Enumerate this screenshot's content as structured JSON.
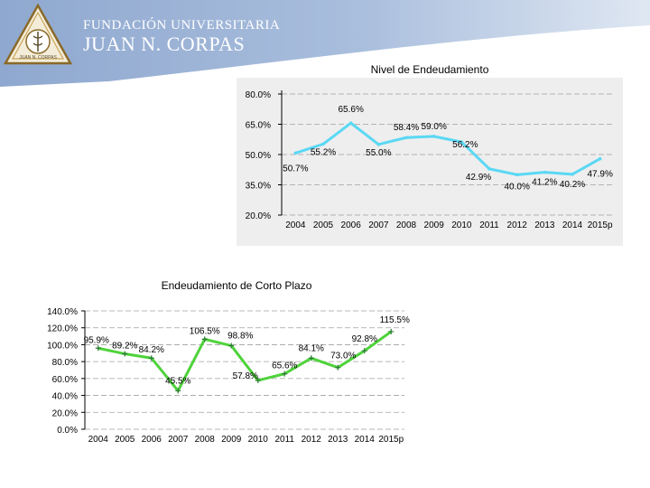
{
  "header": {
    "line1": "FUNDACIÓN UNIVERSITARIA",
    "line2": "JUAN N. CORPAS",
    "emblem_caption": "JUAN N. CORPAS"
  },
  "colors": {
    "header_band": "#9fb5d6",
    "header_band_light": "#c9d7ea",
    "chart1_bg": "#eeeeee",
    "chart1_line": "#5ad8f4",
    "chart2_line": "#4ed33a",
    "marker": "#2f7a3a",
    "grid": "#a0a0a0"
  },
  "chart_data": [
    {
      "type": "line",
      "title": "Nivel de Endeudamiento",
      "categories": [
        "2004",
        "2005",
        "2006",
        "2007",
        "2008",
        "2009",
        "2010",
        "2011",
        "2012",
        "2013",
        "2014",
        "2015p"
      ],
      "values": [
        50.7,
        55.2,
        65.6,
        55.0,
        58.4,
        59.0,
        56.2,
        42.9,
        40.0,
        41.2,
        40.2,
        47.9
      ],
      "data_labels": [
        "50.7%",
        "55.2%",
        "65.6%",
        "55.0%",
        "58.4%",
        "59.0%",
        "56.2%",
        "42.9%",
        "40.0%",
        "41.2%",
        "40.2%",
        "47.9%"
      ],
      "yticks": [
        "20.0%",
        "35.0%",
        "50.0%",
        "65.0%",
        "80.0%"
      ],
      "ytick_values": [
        20,
        35,
        50,
        65,
        80
      ],
      "ylim": [
        20,
        80
      ],
      "grid": true
    },
    {
      "type": "line",
      "title": "Endeudamiento de Corto Plazo",
      "categories": [
        "2004",
        "2005",
        "2006",
        "2007",
        "2008",
        "2009",
        "2010",
        "2011",
        "2012",
        "2013",
        "2014",
        "2015p"
      ],
      "values": [
        95.9,
        89.2,
        84.2,
        45.5,
        106.5,
        98.8,
        57.8,
        65.6,
        84.1,
        73.0,
        92.8,
        115.5
      ],
      "data_labels": [
        "95.9%",
        "89.2%",
        "84.2%",
        "45.5%",
        "106.5%",
        "98.8%",
        "57.8%",
        "65.6%",
        "84.1%",
        "73.0%",
        "92.8%",
        "115.5%"
      ],
      "yticks": [
        "0.0%",
        "20.0%",
        "40.0%",
        "60.0%",
        "80.0%",
        "100.0%",
        "120.0%",
        "140.0%"
      ],
      "ytick_values": [
        0,
        20,
        40,
        60,
        80,
        100,
        120,
        140
      ],
      "ylim": [
        0,
        140
      ],
      "grid": true
    }
  ]
}
